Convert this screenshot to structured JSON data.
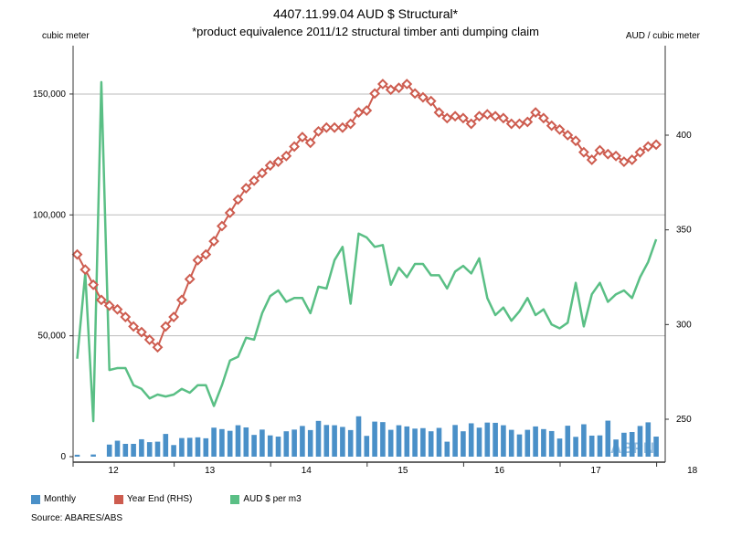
{
  "chart_data": {
    "type": "bar+line",
    "title": "4407.11.99.04 AUD $ Structural*",
    "subtitle": "*product equivalence 2011/12 structural timber anti dumping claim",
    "left_axis": {
      "unit_label": "cubic meter",
      "range": [
        0,
        170000
      ],
      "ticks": [
        "0",
        "50,000",
        "100,000",
        "150,000"
      ],
      "tick_values": [
        0,
        50000,
        100000,
        150000
      ]
    },
    "right_axis": {
      "unit_label": "AUD / cubic meter",
      "range": [
        230,
        430
      ],
      "ticks": [
        "250",
        "300",
        "350",
        "400"
      ],
      "tick_values": [
        250,
        300,
        350,
        400
      ]
    },
    "x_axis": {
      "tick_labels": [
        "12",
        "13",
        "14",
        "15",
        "16",
        "17",
        "18"
      ],
      "tick_positions_month_index": [
        4,
        16,
        28,
        40,
        52,
        64,
        76
      ]
    },
    "grid": "horizontal",
    "legend_placement": "bottom",
    "colors": {
      "bar": "#4a90c8",
      "year_end": "#cd5c4f",
      "aud": "#5abf85",
      "grid": "#bbbbbb",
      "axis": "#333333"
    },
    "months": 73,
    "series": [
      {
        "name": "Monthly",
        "axis": "left",
        "type": "bar",
        "values": [
          800,
          0,
          900,
          0,
          5000,
          6600,
          5300,
          5300,
          7200,
          6000,
          6200,
          9400,
          4800,
          7700,
          7800,
          8000,
          7600,
          12000,
          11400,
          10700,
          13000,
          12100,
          9000,
          11200,
          8800,
          8300,
          10500,
          11200,
          12700,
          11000,
          14800,
          13100,
          13000,
          12300,
          11000,
          16700,
          8600,
          14500,
          14300,
          11100,
          13000,
          12500,
          11600,
          11800,
          10500,
          11900,
          6200,
          13100,
          10500,
          13800,
          12000,
          14100,
          14000,
          13000,
          11100,
          9200,
          11100,
          12500,
          11400,
          10600,
          7500,
          12800,
          8200,
          13400,
          8700,
          8800,
          14900,
          7100,
          9900,
          10200,
          12700,
          14200,
          8300
        ]
      },
      {
        "name": "Year End (RHS)",
        "axis": "right",
        "type": "line-markers",
        "values": [
          337,
          329,
          321,
          313,
          310,
          308,
          304,
          299,
          296,
          292,
          288,
          299,
          304,
          313,
          324,
          334,
          337,
          344,
          352,
          359,
          366,
          372,
          376,
          380,
          384,
          386,
          389,
          394,
          399,
          396,
          402,
          404,
          404,
          404,
          406,
          412,
          413,
          422,
          427,
          424,
          425,
          427,
          422,
          420,
          418,
          412,
          409,
          410,
          409,
          406,
          410,
          411,
          410,
          409,
          406,
          406,
          407,
          412,
          409,
          405,
          403,
          400,
          397,
          391,
          387,
          392,
          390,
          389,
          386,
          387,
          391,
          394,
          395
        ]
      },
      {
        "name": "AUD $ per m3",
        "axis": "right",
        "type": "line",
        "values": [
          282,
          327,
          249,
          428,
          276,
          277,
          277,
          268,
          266,
          261,
          263,
          262,
          263,
          266,
          264,
          268,
          268,
          257,
          268,
          281,
          283,
          293,
          292,
          306,
          315,
          318,
          312,
          314,
          314,
          306,
          320,
          319,
          334,
          341,
          311,
          348,
          346,
          341,
          342,
          321,
          330,
          325,
          332,
          332,
          326,
          326,
          319,
          328,
          331,
          327,
          335,
          314,
          305,
          309,
          302,
          307,
          314,
          305,
          308,
          300,
          298,
          301,
          322,
          299,
          316,
          322,
          312,
          316,
          318,
          314,
          325,
          333,
          345
        ]
      }
    ],
    "legend": [
      "Monthly",
      "Year End (RHS)",
      "AUD $ per m3"
    ],
    "source": "Source: ABARES/ABS",
    "watermark": "ABPN"
  }
}
